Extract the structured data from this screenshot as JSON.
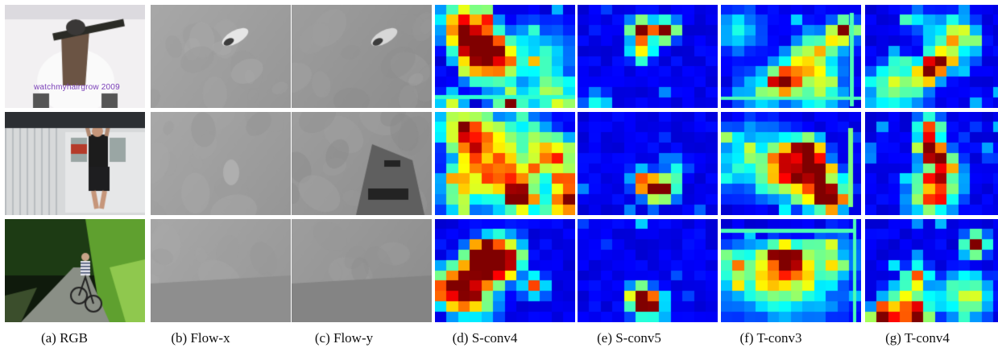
{
  "figure": {
    "watermark": "watchmyhairgrow 2009",
    "columns": [
      {
        "label": "(a)  RGB",
        "kind": "rgb"
      },
      {
        "label": "(b)  Flow-x",
        "kind": "flowx"
      },
      {
        "label": "(c)  Flow-y",
        "kind": "flowy"
      },
      {
        "label": "(d)  S-conv4",
        "kind": "heat"
      },
      {
        "label": "(e)  S-conv5",
        "kind": "heat"
      },
      {
        "label": "(f)  T-conv3",
        "kind": "heat"
      },
      {
        "label": "(g)  T-conv4",
        "kind": "heat"
      }
    ],
    "rows": 3
  }
}
